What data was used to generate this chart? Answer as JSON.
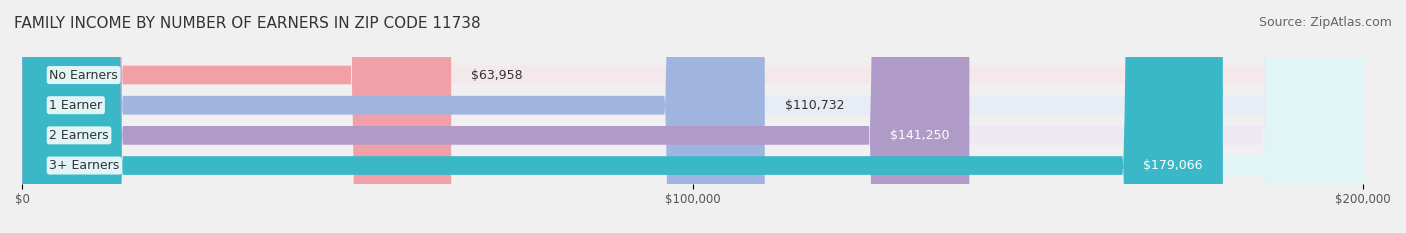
{
  "title": "FAMILY INCOME BY NUMBER OF EARNERS IN ZIP CODE 11738",
  "source": "Source: ZipAtlas.com",
  "categories": [
    "No Earners",
    "1 Earner",
    "2 Earners",
    "3+ Earners"
  ],
  "values": [
    63958,
    110732,
    141250,
    179066
  ],
  "labels": [
    "$63,958",
    "$110,732",
    "$141,250",
    "$179,066"
  ],
  "bar_colors": [
    "#f2a0a8",
    "#a0b4e0",
    "#b09ac8",
    "#3ab8c8"
  ],
  "bg_colors": [
    "#f5e8ea",
    "#e8ecf5",
    "#ede8f2",
    "#e0f5f5"
  ],
  "xlim": [
    0,
    200000
  ],
  "xticks": [
    0,
    100000,
    200000
  ],
  "xticklabels": [
    "$0",
    "$100,000",
    "$200,000"
  ],
  "title_fontsize": 11,
  "source_fontsize": 9,
  "label_fontsize": 9,
  "category_fontsize": 9,
  "background_color": "#f0f0f0",
  "bar_bg_color": "#e8e8e8"
}
